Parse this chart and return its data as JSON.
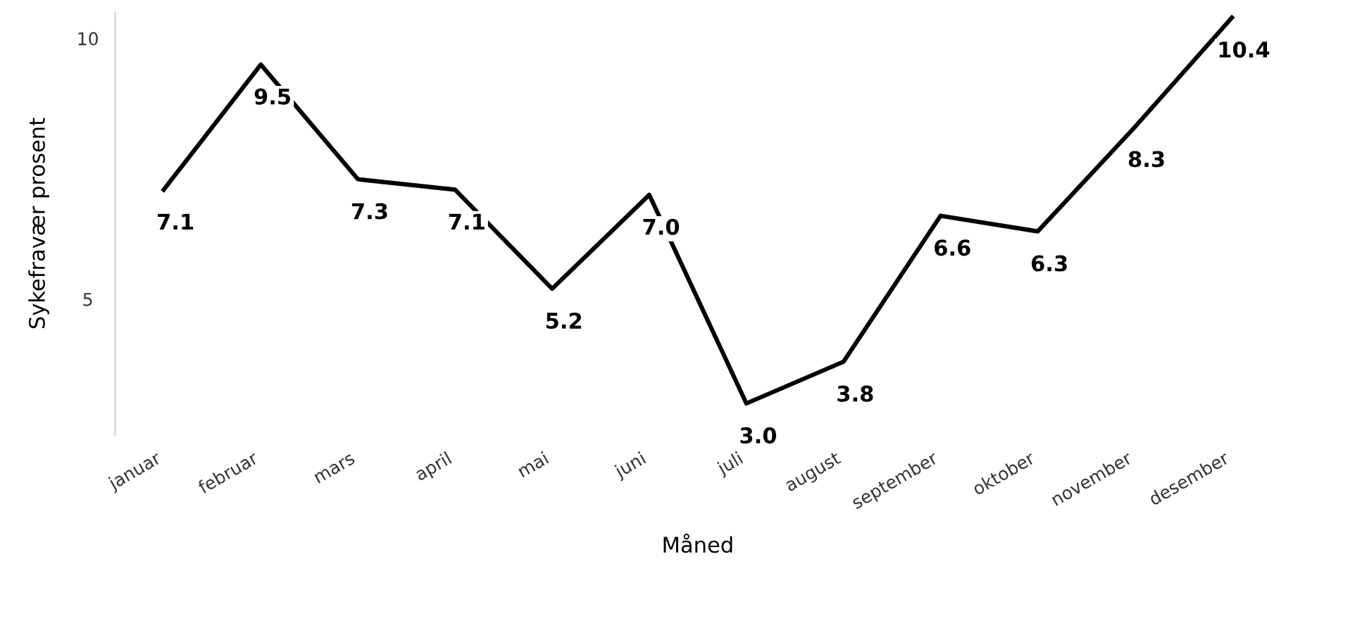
{
  "chart_data": {
    "type": "line",
    "xlabel": "Måned",
    "ylabel": "Sykefravær prosent",
    "categories": [
      "januar",
      "februar",
      "mars",
      "april",
      "mai",
      "juni",
      "juli",
      "august",
      "september",
      "oktober",
      "november",
      "desember"
    ],
    "series": [
      {
        "color": "#000000",
        "values": [
          7.1,
          9.5,
          7.3,
          7.1,
          5.2,
          7.0,
          3.0,
          3.8,
          6.6,
          6.3,
          8.3,
          10.4
        ]
      }
    ],
    "value_labels": [
      "7.1",
      "9.5",
      "7.3",
      "7.1",
      "5.2",
      "7.0",
      "3.0",
      "3.8",
      "6.6",
      "6.3",
      "8.3",
      "10.4"
    ],
    "ylim": [
      2.4,
      10.5
    ],
    "yticks": [
      5,
      10
    ],
    "grid": false,
    "legend": false,
    "marker": "none",
    "line_style": "solid"
  }
}
